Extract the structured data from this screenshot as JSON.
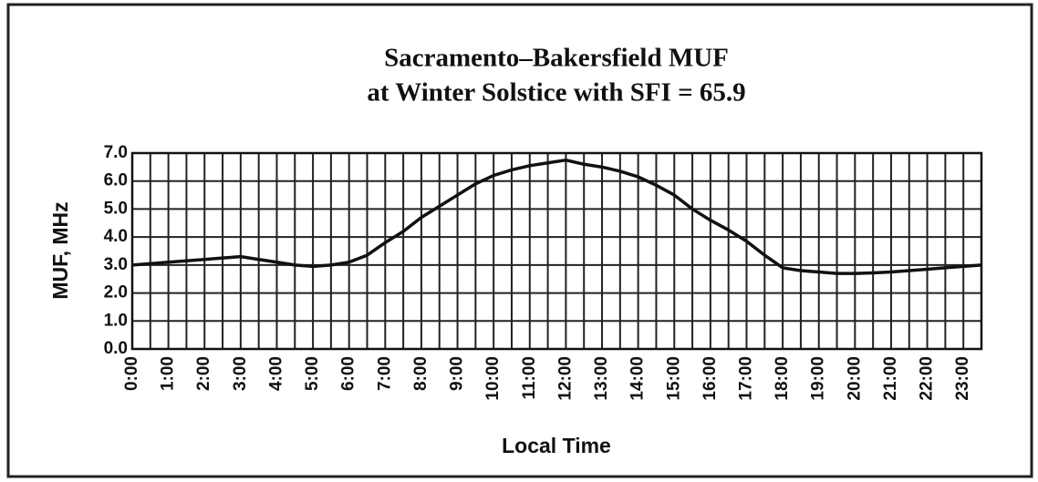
{
  "chart_data": {
    "type": "line",
    "title": "Sacramento–Bakersfield MUF",
    "subtitle": "at Winter Solstice with SFI = 65.9",
    "x_label": "Local Time",
    "y_label": "MUF, MHz",
    "categories": [
      "0:00",
      null,
      "1:00",
      null,
      "2:00",
      null,
      "3:00",
      null,
      "4:00",
      null,
      "5:00",
      null,
      "6:00",
      null,
      "7:00",
      null,
      "8:00",
      null,
      "9:00",
      null,
      "10:00",
      null,
      "11:00",
      null,
      "12:00",
      null,
      "13:00",
      null,
      "14:00",
      null,
      "15:00",
      null,
      "16:00",
      null,
      "17:00",
      null,
      "18:00",
      null,
      "19:00",
      null,
      "20:00",
      null,
      "21:00",
      null,
      "22:00",
      null,
      "23:00",
      null
    ],
    "series": [
      {
        "name": "MUF",
        "color": "#111111",
        "values": [
          3.0,
          3.05,
          3.1,
          3.15,
          3.2,
          3.25,
          3.3,
          3.2,
          3.1,
          3.0,
          2.95,
          3.0,
          3.1,
          3.35,
          3.8,
          4.2,
          4.7,
          5.1,
          5.5,
          5.9,
          6.2,
          6.4,
          6.55,
          6.65,
          6.75,
          6.6,
          6.5,
          6.35,
          6.15,
          5.85,
          5.5,
          5.0,
          4.6,
          4.25,
          3.85,
          3.35,
          2.9,
          2.8,
          2.75,
          2.7,
          2.7,
          2.72,
          2.75,
          2.8,
          2.85,
          2.9,
          2.95,
          3.0
        ]
      }
    ],
    "ylim": [
      0,
      7
    ],
    "yticks": [
      {
        "value": 0,
        "label": "0.0"
      },
      {
        "value": 1,
        "label": "1.0"
      },
      {
        "value": 2,
        "label": "2.0"
      },
      {
        "value": 3,
        "label": "3.0"
      },
      {
        "value": 4,
        "label": "4.0"
      },
      {
        "value": 5,
        "label": "5.0"
      },
      {
        "value": 6,
        "label": "6.0"
      },
      {
        "value": 7,
        "label": "7.0"
      }
    ],
    "grid": true
  }
}
